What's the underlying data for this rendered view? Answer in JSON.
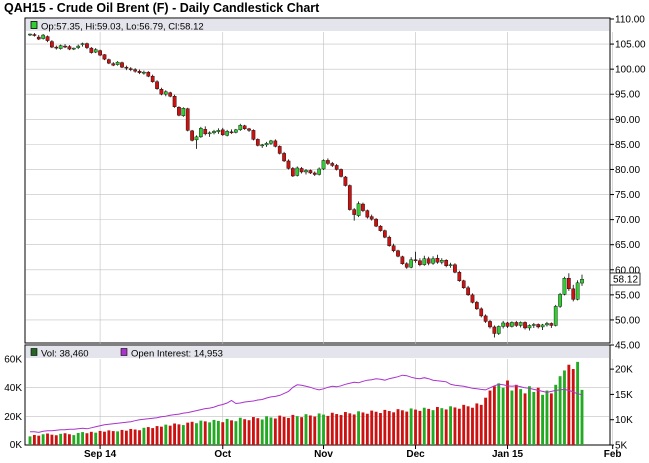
{
  "title": "QAH15 - Crude Oil Brent (F) - Daily Candlestick Chart",
  "colors": {
    "up": "#33cc33",
    "down": "#cc1111",
    "oi": "#aa33cc",
    "header": "#e4e4ec",
    "grid": "#c0c0c0"
  },
  "chart_data": [
    {
      "type": "candlestick",
      "title": "QAH15 - Crude Oil Brent (F) - Daily Candlestick Chart",
      "ohlc_legend": {
        "icon": "up-candle-icon",
        "text": "Op:57.35, Hi:59.03, Lo:56.79, Cl:58.12"
      },
      "last_price_label": "58.12",
      "y_ticks": [
        "110.00",
        "105.00",
        "100.00",
        "95.00",
        "90.00",
        "85.00",
        "80.00",
        "75.00",
        "70.00",
        "65.00",
        "60.00",
        "55.00",
        "50.00",
        "45.00"
      ],
      "ylim": [
        45,
        110
      ],
      "x_ticks": [
        {
          "label": "Sep 14",
          "index": 16
        },
        {
          "label": "Oct",
          "index": 44
        },
        {
          "label": "Nov",
          "index": 67
        },
        {
          "label": "Dec",
          "index": 88
        },
        {
          "label": "Jan 15",
          "index": 109
        },
        {
          "label": "Feb",
          "index": 133
        }
      ],
      "candles": [
        [
          106.8,
          107.1,
          106.6,
          107.0
        ],
        [
          106.9,
          107.2,
          106.5,
          106.7
        ],
        [
          106.4,
          106.8,
          105.8,
          106.0
        ],
        [
          106.1,
          107.0,
          105.9,
          106.8
        ],
        [
          106.5,
          106.7,
          105.4,
          105.7
        ],
        [
          105.5,
          105.8,
          104.2,
          104.4
        ],
        [
          104.4,
          104.7,
          103.9,
          104.2
        ],
        [
          104.1,
          104.9,
          103.9,
          104.7
        ],
        [
          104.6,
          105.0,
          104.2,
          104.5
        ],
        [
          104.5,
          104.8,
          103.8,
          104.0
        ],
        [
          104.0,
          104.3,
          103.8,
          104.2
        ],
        [
          104.3,
          104.9,
          104.0,
          104.6
        ],
        [
          104.9,
          105.3,
          104.5,
          105.1
        ],
        [
          105.1,
          105.3,
          104.0,
          104.3
        ],
        [
          104.2,
          104.4,
          103.1,
          103.3
        ],
        [
          103.4,
          104.2,
          103.2,
          103.9
        ],
        [
          103.7,
          103.9,
          102.6,
          102.8
        ],
        [
          102.9,
          103.0,
          101.8,
          102.0
        ],
        [
          101.9,
          102.1,
          101.0,
          101.2
        ],
        [
          101.1,
          101.4,
          100.6,
          100.8
        ],
        [
          100.9,
          101.6,
          100.7,
          101.4
        ],
        [
          101.3,
          101.5,
          100.2,
          100.4
        ],
        [
          100.4,
          100.7,
          99.8,
          100.2
        ],
        [
          100.1,
          100.4,
          99.6,
          99.9
        ],
        [
          99.9,
          100.2,
          99.3,
          99.6
        ],
        [
          99.6,
          99.9,
          99.0,
          99.3
        ],
        [
          99.3,
          99.7,
          98.9,
          99.4
        ],
        [
          99.4,
          99.6,
          98.4,
          98.6
        ],
        [
          98.6,
          98.9,
          97.3,
          97.5
        ],
        [
          97.5,
          97.8,
          95.9,
          96.1
        ],
        [
          96.0,
          96.3,
          94.8,
          95.0
        ],
        [
          95.0,
          95.8,
          94.6,
          95.5
        ],
        [
          95.3,
          95.5,
          94.4,
          94.6
        ],
        [
          94.6,
          94.9,
          92.3,
          92.5
        ],
        [
          92.4,
          92.6,
          90.6,
          90.8
        ],
        [
          90.7,
          92.4,
          90.5,
          92.2
        ],
        [
          92.1,
          92.3,
          87.6,
          87.8
        ],
        [
          87.7,
          87.9,
          85.6,
          85.8
        ],
        [
          85.9,
          86.8,
          84.1,
          86.5
        ],
        [
          86.5,
          88.5,
          86.3,
          88.2
        ],
        [
          88.0,
          88.6,
          86.8,
          87.1
        ],
        [
          87.1,
          87.6,
          86.5,
          87.3
        ],
        [
          87.3,
          87.9,
          87.0,
          87.6
        ],
        [
          87.5,
          88.2,
          87.1,
          87.8
        ],
        [
          87.9,
          88.3,
          86.7,
          86.9
        ],
        [
          86.8,
          87.9,
          86.6,
          87.6
        ],
        [
          87.5,
          88.0,
          87.1,
          87.4
        ],
        [
          87.4,
          88.1,
          87.2,
          87.9
        ],
        [
          87.9,
          89.1,
          87.7,
          88.8
        ],
        [
          88.7,
          88.9,
          87.9,
          88.1
        ],
        [
          88.1,
          88.3,
          87.5,
          87.8
        ],
        [
          87.8,
          88.0,
          85.8,
          86.0
        ],
        [
          86.0,
          86.2,
          84.6,
          84.8
        ],
        [
          84.8,
          85.1,
          84.3,
          84.9
        ],
        [
          84.9,
          85.5,
          84.5,
          85.2
        ],
        [
          85.2,
          85.9,
          84.9,
          85.7
        ],
        [
          85.7,
          86.0,
          84.4,
          84.6
        ],
        [
          84.6,
          84.8,
          83.0,
          83.2
        ],
        [
          83.2,
          83.5,
          81.5,
          81.7
        ],
        [
          81.7,
          82.0,
          80.0,
          80.2
        ],
        [
          80.2,
          80.5,
          78.5,
          78.7
        ],
        [
          78.8,
          80.6,
          78.6,
          80.3
        ],
        [
          80.2,
          80.5,
          79.2,
          79.5
        ],
        [
          79.5,
          80.1,
          79.0,
          79.8
        ],
        [
          79.8,
          80.0,
          79.1,
          79.3
        ],
        [
          79.3,
          79.6,
          78.7,
          79.0
        ],
        [
          79.0,
          80.4,
          78.8,
          80.1
        ],
        [
          80.1,
          82.0,
          79.9,
          81.8
        ],
        [
          81.8,
          82.2,
          80.9,
          81.2
        ],
        [
          81.2,
          81.5,
          80.5,
          80.8
        ],
        [
          80.8,
          81.1,
          79.8,
          80.0
        ],
        [
          80.0,
          80.2,
          78.4,
          78.6
        ],
        [
          78.5,
          78.7,
          76.6,
          76.8
        ],
        [
          76.8,
          77.0,
          71.8,
          72.0
        ],
        [
          72.0,
          72.3,
          69.8,
          71.0
        ],
        [
          70.8,
          73.6,
          70.5,
          73.2
        ],
        [
          73.1,
          73.4,
          71.5,
          71.8
        ],
        [
          71.8,
          72.0,
          70.2,
          70.5
        ],
        [
          70.6,
          71.0,
          69.8,
          70.1
        ],
        [
          70.1,
          70.3,
          68.5,
          68.7
        ],
        [
          68.7,
          68.9,
          67.6,
          67.8
        ],
        [
          67.8,
          68.0,
          66.3,
          66.5
        ],
        [
          66.5,
          66.8,
          64.6,
          64.8
        ],
        [
          64.8,
          65.2,
          63.5,
          63.8
        ],
        [
          63.8,
          64.0,
          62.5,
          62.7
        ],
        [
          62.6,
          62.8,
          61.0,
          61.2
        ],
        [
          61.2,
          61.5,
          60.2,
          60.5
        ],
        [
          60.5,
          62.5,
          60.3,
          62.0
        ],
        [
          62.0,
          63.6,
          61.4,
          61.8
        ],
        [
          61.8,
          62.3,
          60.7,
          61.0
        ],
        [
          61.0,
          62.8,
          60.8,
          62.2
        ],
        [
          62.2,
          62.6,
          60.9,
          61.3
        ],
        [
          61.3,
          62.7,
          61.0,
          62.2
        ],
        [
          62.3,
          63.0,
          61.2,
          61.5
        ],
        [
          61.5,
          62.3,
          61.1,
          61.9
        ],
        [
          61.9,
          62.1,
          60.5,
          60.8
        ],
        [
          60.8,
          61.4,
          60.4,
          61.0
        ],
        [
          61.0,
          61.3,
          59.3,
          59.5
        ],
        [
          59.5,
          59.8,
          57.6,
          57.8
        ],
        [
          57.8,
          58.0,
          56.2,
          56.4
        ],
        [
          56.4,
          56.8,
          54.8,
          55.0
        ],
        [
          55.0,
          55.3,
          53.3,
          53.5
        ],
        [
          53.5,
          53.8,
          52.0,
          52.2
        ],
        [
          52.2,
          52.5,
          50.5,
          50.8
        ],
        [
          50.8,
          51.1,
          49.4,
          49.7
        ],
        [
          49.7,
          50.0,
          48.3,
          48.6
        ],
        [
          48.6,
          48.9,
          46.5,
          47.3
        ],
        [
          47.3,
          48.9,
          47.0,
          48.7
        ],
        [
          48.7,
          49.8,
          48.3,
          49.4
        ],
        [
          49.4,
          49.6,
          48.4,
          48.7
        ],
        [
          48.7,
          49.7,
          48.5,
          49.5
        ],
        [
          49.5,
          49.8,
          48.6,
          48.9
        ],
        [
          48.9,
          49.7,
          48.5,
          49.5
        ],
        [
          49.5,
          49.7,
          48.1,
          48.4
        ],
        [
          48.4,
          49.1,
          47.9,
          48.9
        ],
        [
          48.9,
          49.4,
          48.4,
          49.1
        ],
        [
          49.1,
          49.3,
          48.3,
          48.6
        ],
        [
          48.6,
          49.2,
          48.0,
          49.0
        ],
        [
          49.0,
          49.6,
          48.7,
          49.3
        ],
        [
          49.3,
          49.5,
          48.4,
          48.9
        ],
        [
          48.9,
          53.0,
          48.7,
          52.7
        ],
        [
          52.7,
          55.4,
          52.4,
          55.1
        ],
        [
          55.1,
          58.6,
          54.9,
          58.3
        ],
        [
          58.3,
          59.3,
          55.8,
          56.2
        ],
        [
          56.2,
          57.0,
          53.7,
          54.1
        ],
        [
          54.1,
          57.9,
          53.9,
          57.4
        ],
        [
          57.35,
          59.03,
          56.79,
          58.12
        ]
      ]
    },
    {
      "type": "bar",
      "legend": [
        {
          "icon": "volume-legend-icon",
          "text": "Vol: 38,460"
        },
        {
          "icon": "open-interest-legend-icon",
          "text": "Open Interest: 14,953"
        }
      ],
      "left_ticks": [
        "60K",
        "40K",
        "20K",
        "0K"
      ],
      "right_ticks": [
        "20K",
        "15K",
        "10K",
        "5K"
      ],
      "ylim_volume": [
        0,
        60000
      ],
      "ylim_open_interest": [
        5000,
        22000
      ],
      "volume": [
        6000,
        7000,
        6500,
        7500,
        8000,
        7200,
        6800,
        7800,
        8200,
        7500,
        6900,
        8400,
        9000,
        8200,
        9200,
        8600,
        9800,
        9300,
        10200,
        9700,
        9500,
        10500,
        10000,
        11200,
        10800,
        10300,
        12000,
        12500,
        11800,
        13200,
        12800,
        14200,
        13500,
        15000,
        14400,
        13900,
        15600,
        16200,
        15200,
        17000,
        16500,
        15800,
        17500,
        16800,
        15900,
        18200,
        17200,
        16600,
        19000,
        18000,
        17300,
        19500,
        18700,
        17800,
        20000,
        19200,
        18500,
        20500,
        19600,
        18900,
        21000,
        20100,
        19400,
        21500,
        20600,
        19800,
        22000,
        21200,
        20300,
        22500,
        21600,
        20900,
        23000,
        22100,
        21300,
        23500,
        22700,
        21800,
        24000,
        23200,
        22300,
        24500,
        23700,
        22800,
        25000,
        24200,
        23300,
        25500,
        24700,
        23800,
        26000,
        25200,
        24300,
        26500,
        25700,
        24800,
        27000,
        26200,
        25300,
        28000,
        27000,
        26000,
        29000,
        28000,
        33000,
        38000,
        41000,
        43000,
        40000,
        45000,
        38000,
        42000,
        39000,
        36000,
        41000,
        37000,
        40000,
        35000,
        38000,
        36000,
        42000,
        48000,
        52000,
        56000,
        53000,
        58000,
        38460
      ],
      "open_interest": [
        7600,
        7600,
        7500,
        7700,
        7800,
        7800,
        7900,
        8000,
        8000,
        8100,
        8100,
        8200,
        8300,
        8200,
        8400,
        8600,
        8800,
        9000,
        9100,
        9200,
        9300,
        9400,
        9500,
        9600,
        9800,
        10000,
        10100,
        10200,
        10300,
        10400,
        10600,
        10700,
        10900,
        11000,
        11100,
        11300,
        11400,
        11600,
        11800,
        12000,
        12200,
        12300,
        12500,
        12800,
        13000,
        13300,
        13800,
        13200,
        13300,
        13500,
        13600,
        13700,
        13900,
        14000,
        14300,
        14500,
        14600,
        14800,
        15200,
        15600,
        16400,
        16900,
        16800,
        16600,
        16400,
        16100,
        15900,
        16100,
        16400,
        16600,
        16500,
        16700,
        17000,
        17200,
        17400,
        17300,
        17600,
        17800,
        17900,
        18100,
        18000,
        17800,
        18100,
        18300,
        18500,
        18800,
        18700,
        18400,
        18200,
        18100,
        18300,
        18100,
        17800,
        17700,
        17600,
        17500,
        17000,
        16800,
        16700,
        16600,
        16400,
        16200,
        16100,
        16000,
        15900,
        16300,
        16700,
        17000,
        16900,
        16700,
        16600,
        16700,
        16500,
        16300,
        16200,
        16000,
        15800,
        15600,
        15400,
        15600,
        15800,
        15900,
        16000,
        15800,
        15500,
        15100,
        14953
      ]
    }
  ]
}
